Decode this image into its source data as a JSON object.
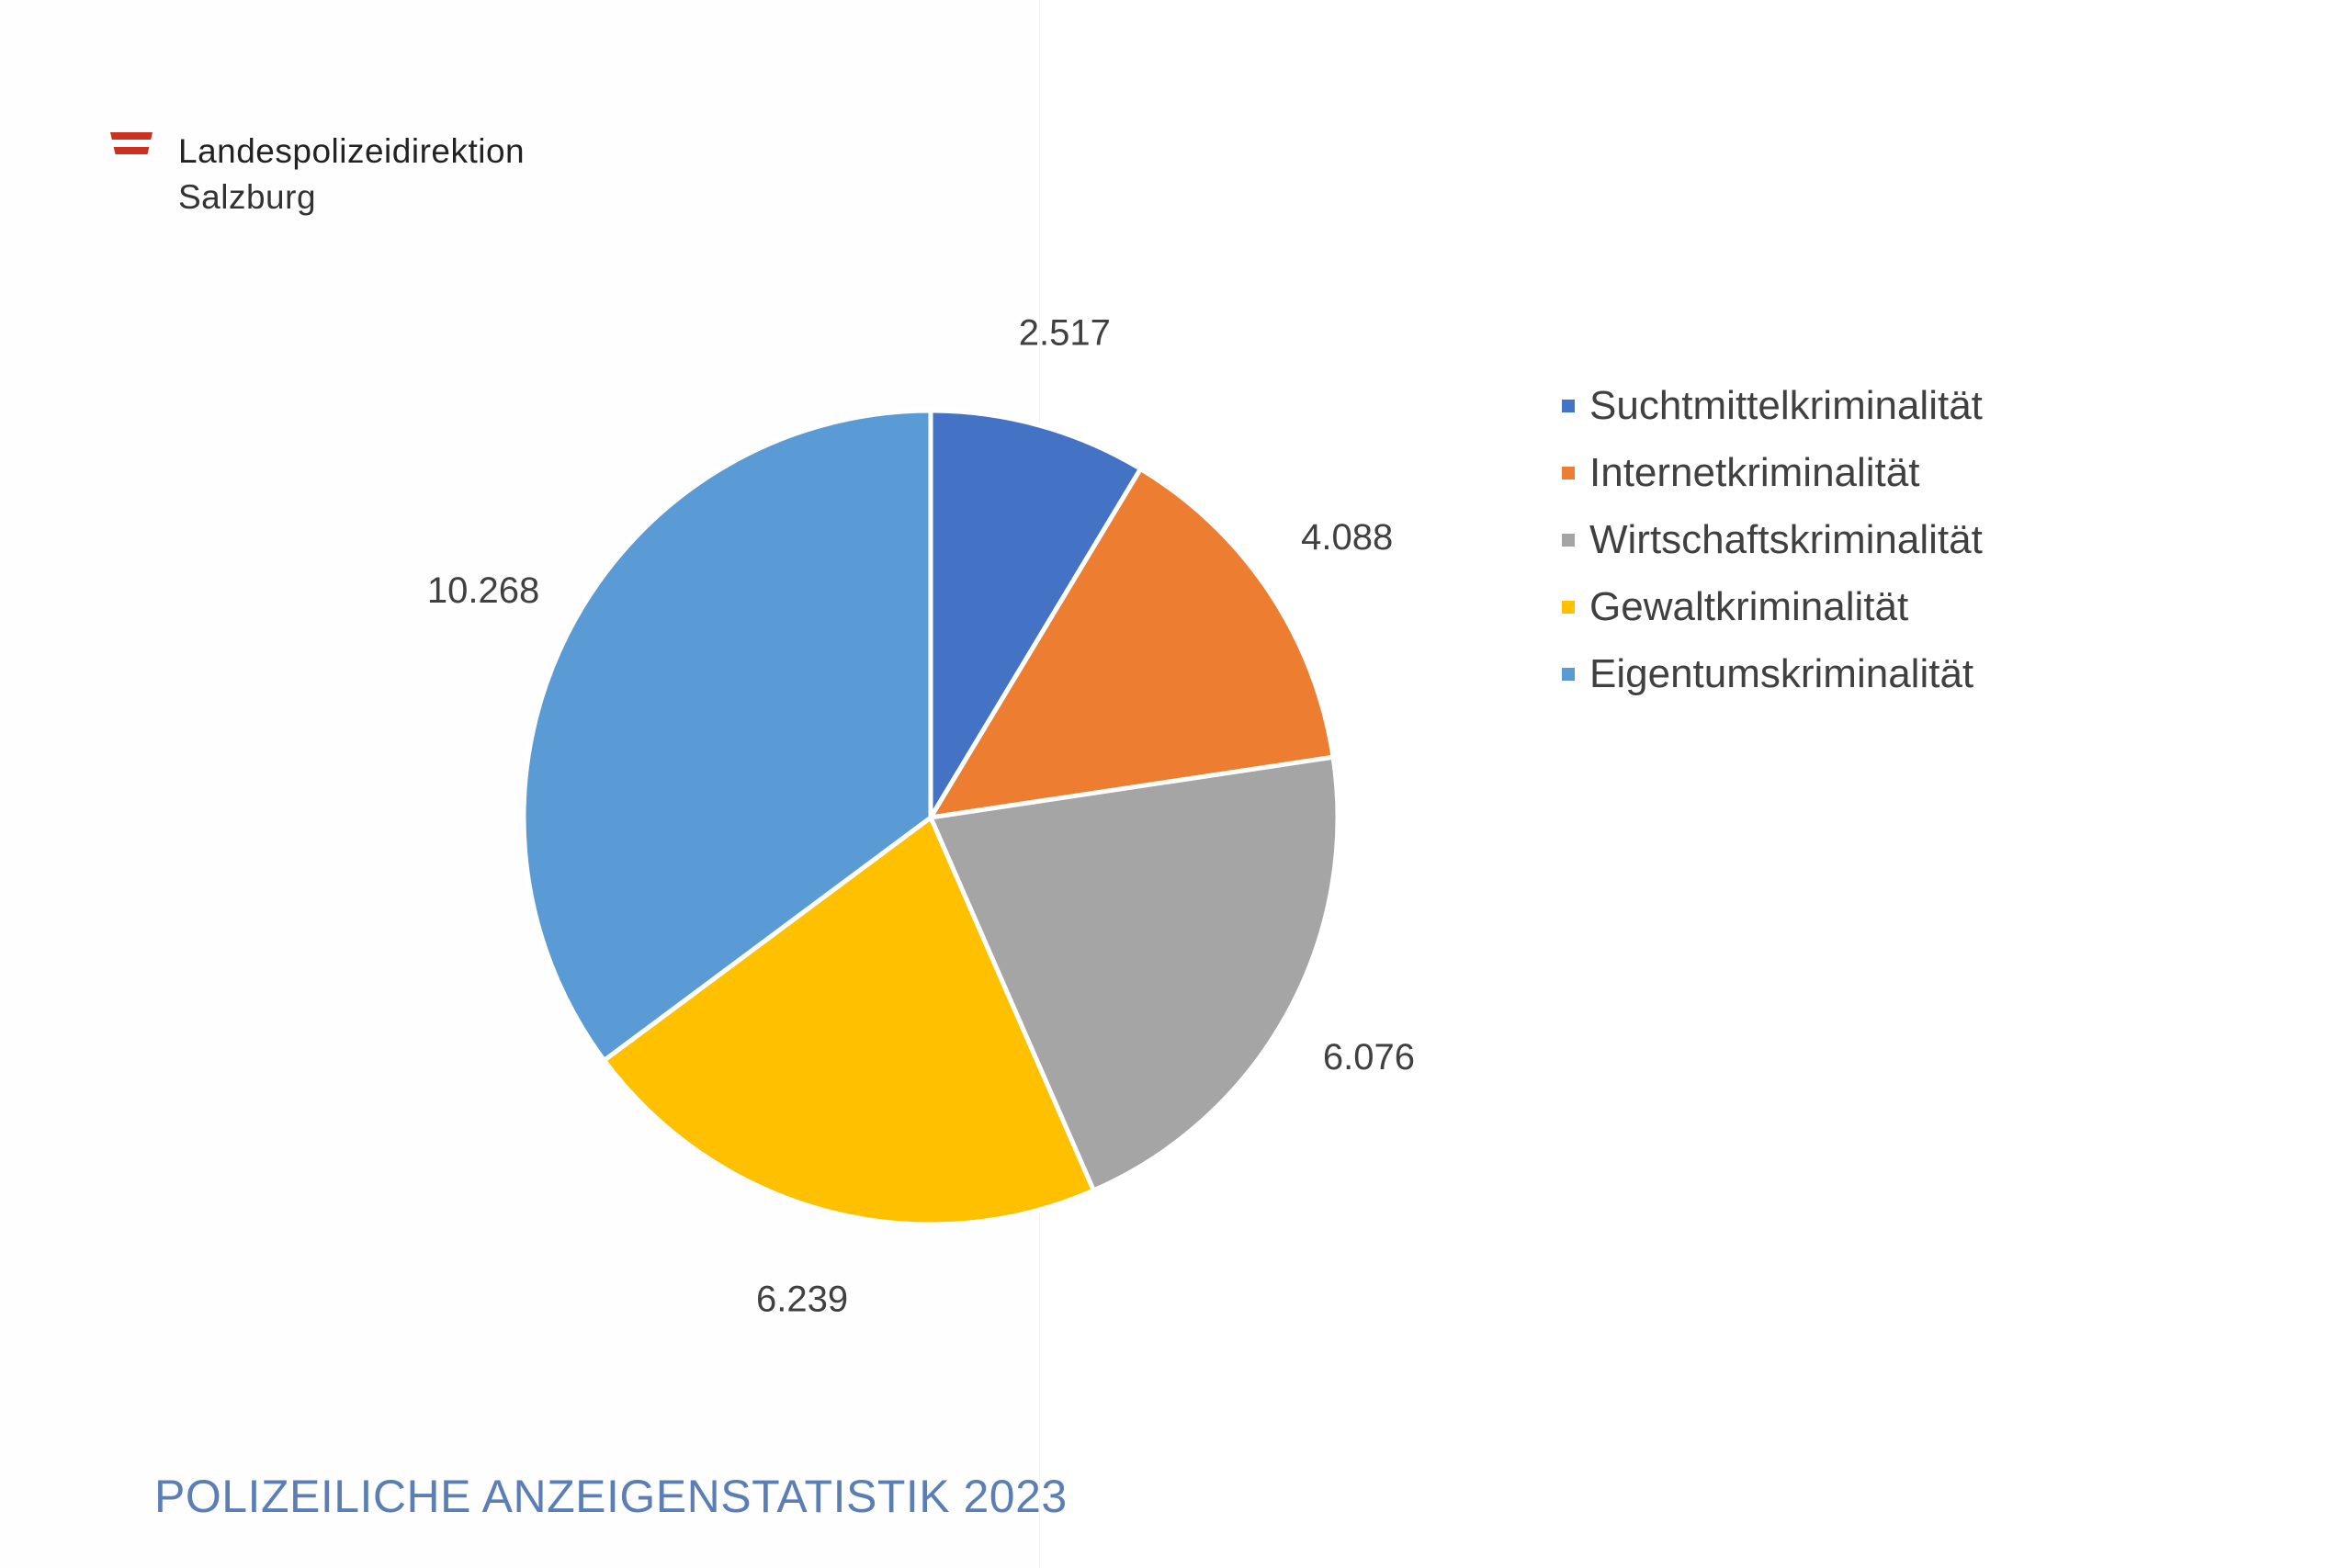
{
  "header": {
    "org_line1": "Landespolizeidirektion",
    "org_line2": "Salzburg",
    "flag_color": "#c8321e"
  },
  "footer": {
    "title": "POLIZEILICHE ANZEIGENSTATISTIK 2023",
    "color": "#5b7fb5"
  },
  "chart_data": {
    "type": "pie",
    "title": "",
    "categories": [
      "Suchtmittelkriminalität",
      "Internetkriminalität",
      "Wirtschaftskriminalität",
      "Gewaltkriminalität",
      "Eigentumskriminalität"
    ],
    "values": [
      2517,
      4088,
      6076,
      6239,
      10268
    ],
    "data_labels": [
      "2.517",
      "4.088",
      "6.076",
      "6.239",
      "10.268"
    ],
    "colors": [
      "#4472c4",
      "#ed7d31",
      "#a5a5a5",
      "#ffc000",
      "#5b9bd5"
    ],
    "legend_placement": "right",
    "start_angle": "top-clockwise"
  }
}
